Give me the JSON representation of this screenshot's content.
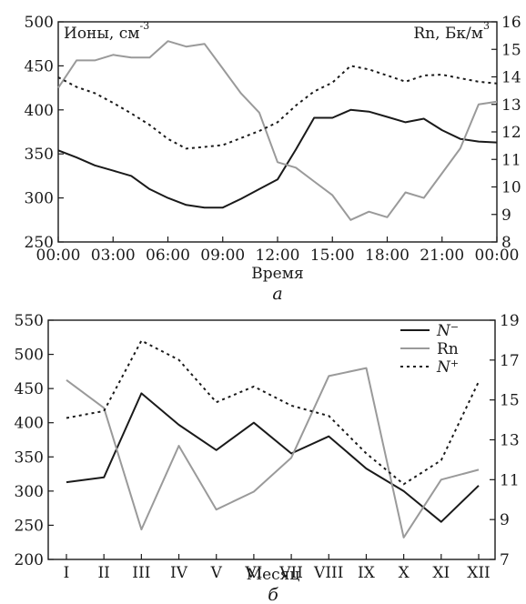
{
  "chart_data": [
    {
      "type": "line",
      "panel_label": "а",
      "xlabel": "Время",
      "ylabel_left": "Ионы, см",
      "ylabel_left_sup": "-3",
      "ylabel_right": "Rn, Бк/м",
      "ylabel_right_sup": "3",
      "x_ticks": [
        "00:00",
        "03:00",
        "06:00",
        "09:00",
        "12:00",
        "15:00",
        "18:00",
        "21:00",
        "00:00"
      ],
      "ylim_left": [
        250,
        500
      ],
      "yticks_left": [
        250,
        300,
        350,
        400,
        450,
        500
      ],
      "ylim_right": [
        8,
        16
      ],
      "yticks_right": [
        8,
        9,
        10,
        11,
        12,
        13,
        14,
        15,
        16
      ],
      "x": [
        0,
        1,
        2,
        3,
        4,
        5,
        6,
        7,
        8,
        9,
        10,
        11,
        12,
        13,
        14,
        15,
        16,
        17,
        18,
        19,
        20,
        21,
        22,
        23,
        24
      ],
      "series": [
        {
          "key": "n_minus",
          "axis": "left",
          "color": "#1a1a1a",
          "dash": "solid",
          "values": [
            354,
            346,
            337,
            331,
            325,
            310,
            300,
            292,
            289,
            289,
            299,
            310,
            321,
            355,
            391,
            391,
            400,
            398,
            392,
            386,
            390,
            377,
            367,
            364,
            363
          ]
        },
        {
          "key": "rn",
          "axis": "right",
          "color": "#9a9a9a",
          "dash": "solid",
          "values": [
            13.6,
            14.6,
            14.6,
            14.8,
            14.7,
            14.7,
            15.3,
            15.1,
            15.2,
            14.3,
            13.4,
            12.7,
            10.9,
            10.7,
            10.2,
            9.7,
            8.8,
            9.1,
            8.9,
            9.8,
            9.6,
            10.5,
            11.4,
            13.0,
            13.1
          ]
        },
        {
          "key": "n_plus",
          "axis": "left",
          "color": "#1a1a1a",
          "dash": "dotted",
          "values": [
            437,
            426,
            419,
            408,
            396,
            383,
            367,
            356,
            358,
            360,
            368,
            376,
            386,
            405,
            421,
            431,
            450,
            446,
            439,
            432,
            439,
            440,
            436,
            432,
            430
          ]
        }
      ]
    },
    {
      "type": "line",
      "panel_label": "б",
      "xlabel": "Месяц",
      "categories": [
        "I",
        "II",
        "III",
        "IV",
        "V",
        "VI",
        "VII",
        "VIII",
        "IX",
        "X",
        "XI",
        "XII"
      ],
      "ylim_left": [
        200,
        550
      ],
      "yticks_left": [
        200,
        250,
        300,
        350,
        400,
        450,
        500,
        550
      ],
      "ylim_right": [
        7,
        19
      ],
      "yticks_right": [
        7,
        9,
        11,
        13,
        15,
        17,
        19
      ],
      "legend": [
        {
          "key": "n_minus",
          "label": "N",
          "sup": "−",
          "italic": true
        },
        {
          "key": "rn",
          "label": "Rn",
          "sup": "",
          "italic": false
        },
        {
          "key": "n_plus",
          "label": "N",
          "sup": "+",
          "italic": true
        }
      ],
      "legend_position": "top-right",
      "series": [
        {
          "key": "n_minus",
          "axis": "left",
          "color": "#1a1a1a",
          "dash": "solid",
          "values": [
            313,
            320,
            443,
            397,
            360,
            400,
            355,
            380,
            333,
            300,
            255,
            308
          ]
        },
        {
          "key": "rn",
          "axis": "right",
          "color": "#9a9a9a",
          "dash": "solid",
          "values": [
            16.0,
            14.6,
            8.5,
            12.7,
            9.5,
            10.4,
            12.1,
            16.2,
            16.6,
            8.1,
            11.0,
            11.5
          ]
        },
        {
          "key": "n_plus",
          "axis": "left",
          "color": "#1a1a1a",
          "dash": "dotted",
          "values": [
            407,
            417,
            520,
            492,
            430,
            453,
            425,
            410,
            355,
            310,
            345,
            460
          ]
        }
      ]
    }
  ]
}
